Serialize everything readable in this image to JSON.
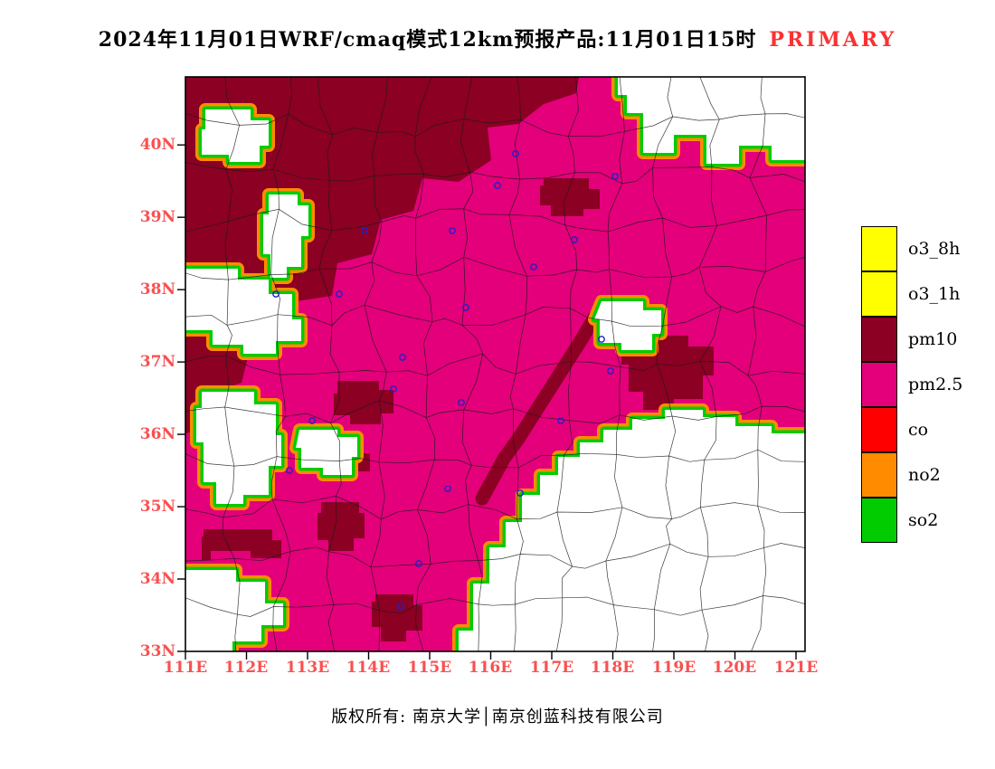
{
  "title": {
    "text": "2024年11月01日WRF/cmaq模式12km预报产品:11月01日15时",
    "highlight": "PRIMARY"
  },
  "colors": {
    "o3": "#FFFF00",
    "pm10": "#8B0023",
    "pm25": "#E3007A",
    "co": "#FF0000",
    "no2": "#FF8C00",
    "so2": "#00CC00",
    "clean": "#FFFFFF",
    "axis_label": "#FA5050",
    "primary_label": "#FA3232",
    "county_line": "#1A1A1A",
    "marker": "#2020CC",
    "frame": "#000000"
  },
  "legend": {
    "items": [
      {
        "label": "o3_8h",
        "color": "#FFFF00"
      },
      {
        "label": "o3_1h",
        "color": "#FFFF00"
      },
      {
        "label": "pm10",
        "color": "#8B0023"
      },
      {
        "label": "pm2.5",
        "color": "#E3007A"
      },
      {
        "label": "co",
        "color": "#FF0000"
      },
      {
        "label": "no2",
        "color": "#FF8C00"
      },
      {
        "label": "so2",
        "color": "#00CC00"
      }
    ]
  },
  "axes": {
    "lat_ticks": [
      "40N",
      "39N",
      "38N",
      "37N",
      "36N",
      "35N",
      "34N",
      "33N"
    ],
    "lon_ticks": [
      "111E",
      "112E",
      "113E",
      "114E",
      "115E",
      "116E",
      "117E",
      "118E",
      "119E",
      "120E",
      "121E"
    ]
  },
  "map": {
    "lat_min": "33N",
    "lat_max": "40N",
    "lon_min": "111E",
    "lon_max": "121E",
    "markers": [
      [
        365,
        85
      ],
      [
        475,
        110
      ],
      [
        170,
        240
      ],
      [
        100,
        240
      ],
      [
        295,
        170
      ],
      [
        385,
        210
      ],
      [
        310,
        255
      ],
      [
        240,
        310
      ],
      [
        230,
        345
      ],
      [
        140,
        380
      ],
      [
        115,
        435
      ],
      [
        290,
        455
      ],
      [
        370,
        460
      ],
      [
        460,
        290
      ],
      [
        470,
        325
      ],
      [
        415,
        380
      ],
      [
        258,
        538
      ],
      [
        198,
        170
      ],
      [
        305,
        360
      ],
      [
        345,
        120
      ],
      [
        430,
        180
      ],
      [
        238,
        585
      ]
    ]
  },
  "footer": {
    "text": "版权所有: 南京大学│南京创蓝科技有限公司"
  }
}
